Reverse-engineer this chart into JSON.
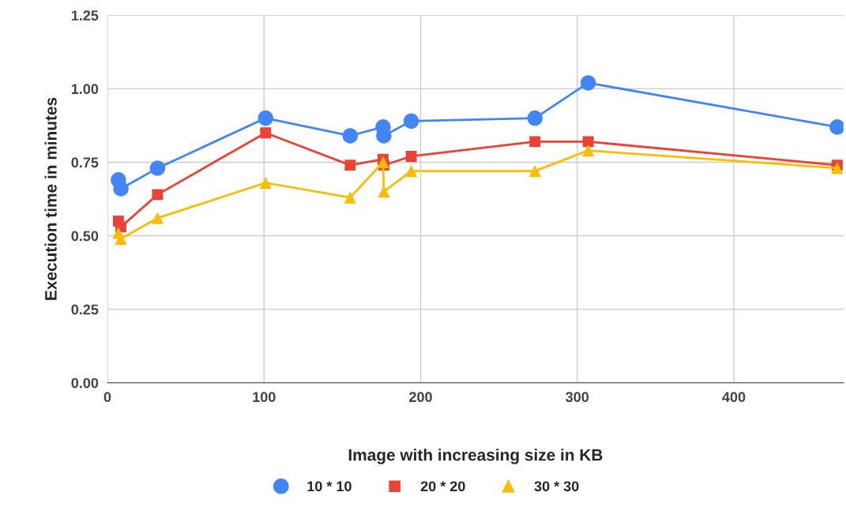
{
  "chart_data": {
    "type": "line",
    "xlabel": "Image with increasing size in KB",
    "ylabel": "Execution time in minutes",
    "xlim": [
      0,
      470
    ],
    "xticks": [
      0,
      100,
      200,
      300,
      400
    ],
    "ylim": [
      0,
      1.25
    ],
    "yticks": [
      {
        "value": 0,
        "label": "0.00"
      },
      {
        "value": 0.25,
        "label": "0.25"
      },
      {
        "value": 0.5,
        "label": "0.50"
      },
      {
        "value": 0.75,
        "label": "0.75"
      },
      {
        "value": 1,
        "label": "1.00"
      },
      {
        "value": 1.25,
        "label": "1.25"
      }
    ],
    "grid": true,
    "legend": "bottom",
    "x": [
      7,
      8.6,
      32,
      101,
      155,
      176,
      176.5,
      194,
      273,
      307,
      466
    ],
    "series": [
      {
        "name": "10 * 10",
        "color": "#4285f4",
        "marker": "circle",
        "values": [
          0.69,
          0.66,
          0.73,
          0.9,
          0.84,
          0.87,
          0.84,
          0.89,
          0.9,
          1.02,
          0.87
        ]
      },
      {
        "name": "20 * 20",
        "color": "#ea4335",
        "marker": "square",
        "values": [
          0.55,
          0.53,
          0.64,
          0.85,
          0.74,
          0.76,
          0.74,
          0.77,
          0.82,
          0.82,
          0.74
        ]
      },
      {
        "name": "30 * 30",
        "color": "#fbbc04",
        "marker": "triangle",
        "values": [
          0.51,
          0.49,
          0.56,
          0.68,
          0.63,
          0.75,
          0.65,
          0.72,
          0.72,
          0.79,
          0.73
        ]
      }
    ]
  }
}
